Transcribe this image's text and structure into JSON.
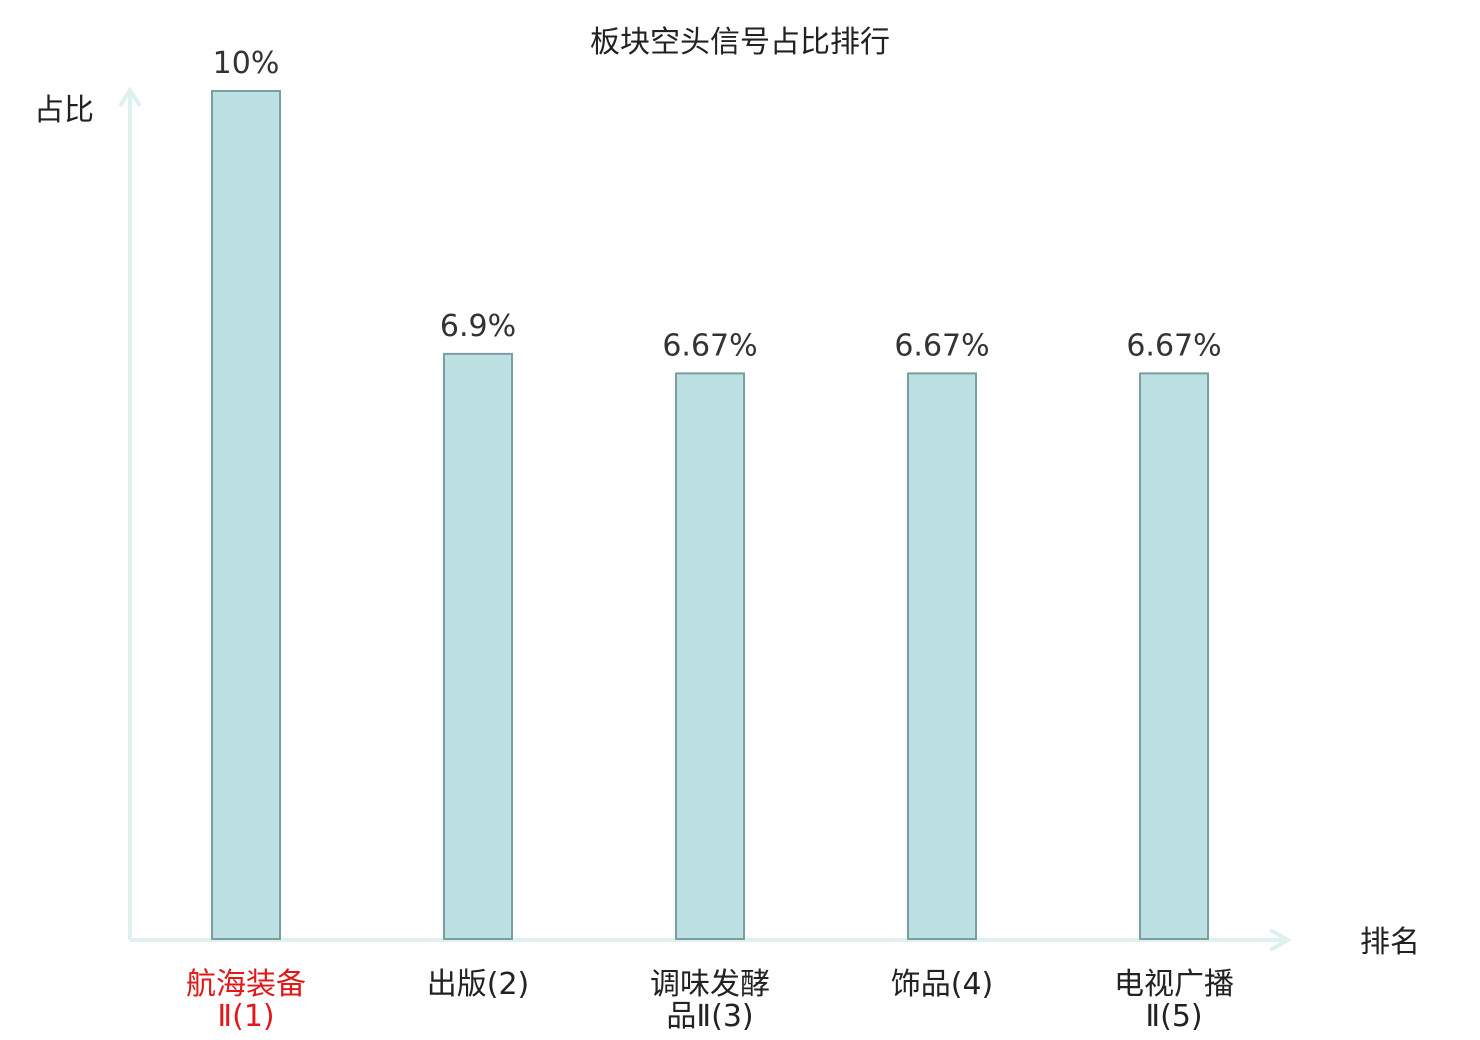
{
  "chart_data": {
    "type": "bar",
    "title": "板块空头信号占比排行",
    "ylabel": "占比",
    "xlabel": "排名",
    "ylim": [
      0,
      10
    ],
    "grid": false,
    "categories": [
      [
        "航海装备",
        "Ⅱ(1)"
      ],
      [
        "出版(2)"
      ],
      [
        "调味发酵",
        "品Ⅱ(3)"
      ],
      [
        "饰品(4)"
      ],
      [
        "电视广播",
        "Ⅱ(5)"
      ]
    ],
    "values": [
      10,
      6.9,
      6.67,
      6.67,
      6.67
    ],
    "value_labels": [
      "10%",
      "6.9%",
      "6.67%",
      "6.67%",
      "6.67%"
    ],
    "highlight_index": 0
  },
  "colors": {
    "bar_fill": "#bde0e2",
    "bar_stroke": "#7a9ea2",
    "axis": "#dff1ee",
    "text": "#222222",
    "value_text": "#333333",
    "highlight": "#e01919"
  }
}
